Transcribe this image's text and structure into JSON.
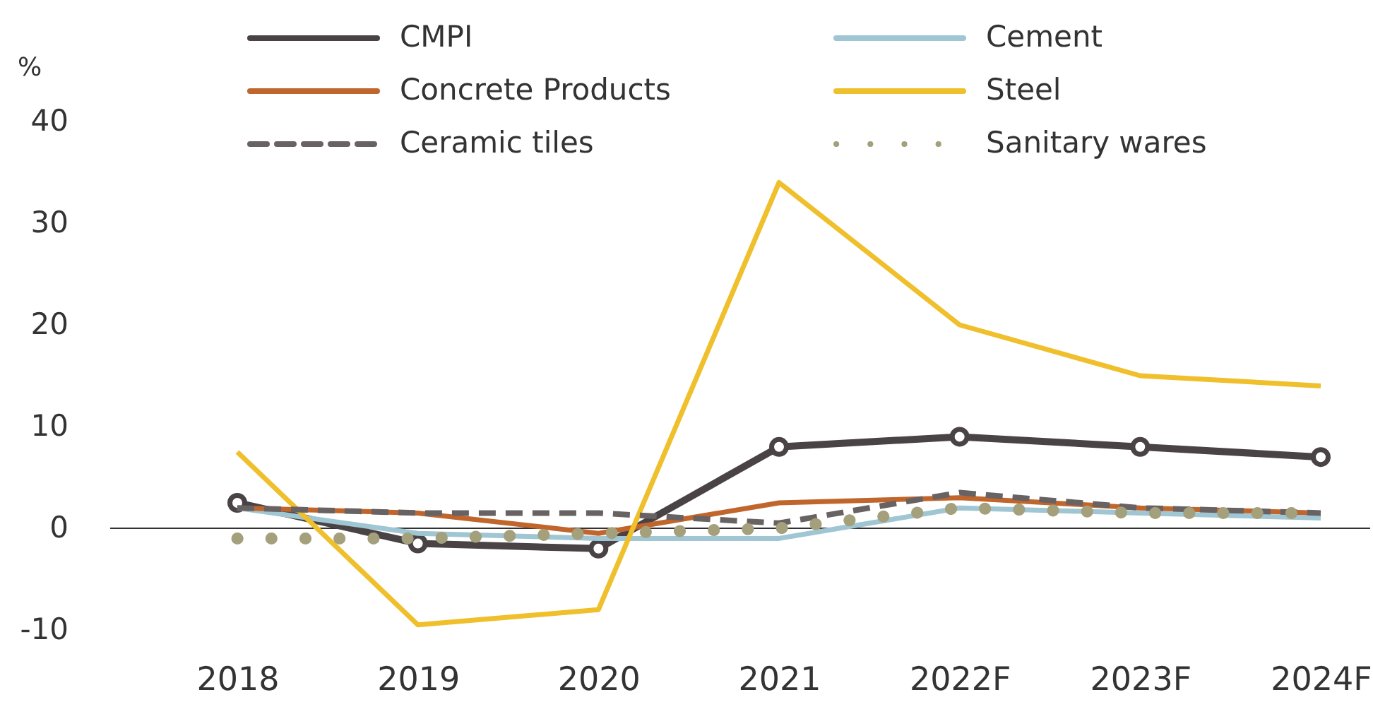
{
  "chart_data": {
    "type": "line",
    "ylabel": "%",
    "categories": [
      "2018",
      "2019",
      "2020",
      "2021",
      "2022F",
      "2023F",
      "2024F"
    ],
    "series": [
      {
        "name": "CMPI",
        "color": "#4a4345",
        "marker": "circle",
        "values": [
          2.5,
          -1.5,
          -2,
          8,
          9,
          8,
          7
        ]
      },
      {
        "name": "Cement",
        "color": "#9fc6d2",
        "values": [
          2,
          -0.5,
          -1,
          -1,
          2,
          1.5,
          1
        ]
      },
      {
        "name": "Concrete Products",
        "color": "#c0662c",
        "values": [
          2,
          1.5,
          -0.5,
          2.5,
          3,
          2,
          1.5
        ]
      },
      {
        "name": "Steel",
        "color": "#f0bf2c",
        "values": [
          7.5,
          -9.5,
          -8,
          34,
          20,
          15,
          14
        ]
      },
      {
        "name": "Ceramic tiles",
        "color": "#686263",
        "line_style": "dashed",
        "values": [
          2,
          1.5,
          1.5,
          0.5,
          3.5,
          2,
          1.5
        ]
      },
      {
        "name": "Sanitary wares",
        "color": "#a4a07c",
        "line_style": "dotted",
        "values": [
          -1,
          -1,
          -0.5,
          0,
          2,
          1.5,
          1.5
        ]
      }
    ],
    "ylim": [
      -10,
      40
    ],
    "yticks": [
      -10,
      0,
      10,
      20,
      30,
      40
    ],
    "legend": "top",
    "ref_lines": [
      {
        "axis": "y",
        "value": 0,
        "color": "#333333"
      }
    ]
  }
}
